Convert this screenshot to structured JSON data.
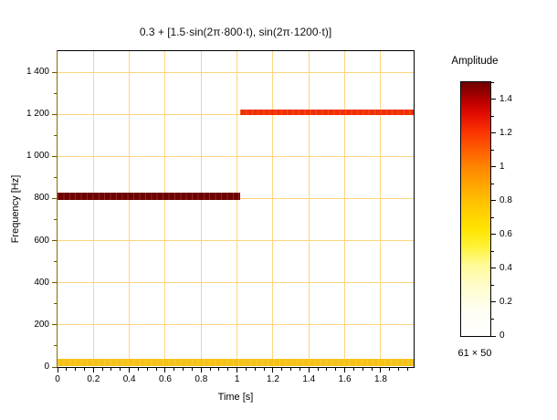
{
  "chart_data": {
    "type": "heatmap",
    "title": "0.3 + [1.5·sin(2π·800·t), sin(2π·1200·t)]",
    "xlabel": "Time [s]",
    "ylabel": "Frequency [Hz]",
    "grid": true,
    "grid_color": "#ffd480",
    "x_axis": {
      "min": 0,
      "max": 1.9833,
      "major_ticks": [
        {
          "value": 0,
          "label": "0"
        },
        {
          "value": 0.2,
          "label": "0.2"
        },
        {
          "value": 0.4,
          "label": "0.4"
        },
        {
          "value": 0.6,
          "label": "0.6"
        },
        {
          "value": 0.8,
          "label": "0.8"
        },
        {
          "value": 1,
          "label": "1"
        },
        {
          "value": 1.2,
          "label": "1.2"
        },
        {
          "value": 1.4,
          "label": "1.4"
        },
        {
          "value": 1.6,
          "label": "1.6"
        },
        {
          "value": 1.8,
          "label": "1.8"
        }
      ],
      "minor_step": 0.05
    },
    "y_axis": {
      "min": 0,
      "max": 1500,
      "major_ticks": [
        {
          "value": 0,
          "label": "0"
        },
        {
          "value": 200,
          "label": "200"
        },
        {
          "value": 400,
          "label": "400"
        },
        {
          "value": 600,
          "label": "600"
        },
        {
          "value": 800,
          "label": "800"
        },
        {
          "value": 1000,
          "label": "1 000"
        },
        {
          "value": 1200,
          "label": "1 200"
        },
        {
          "value": 1400,
          "label": "1 400"
        }
      ],
      "minor_step": 100
    },
    "bands": [
      {
        "name": "dc-offset-band",
        "t_start": 0,
        "t_end": 1.9833,
        "f_low": 5,
        "f_high": 38,
        "amplitude": 0.3,
        "color": "#f5c217"
      },
      {
        "name": "800hz-tone-band",
        "t_start": 0,
        "t_end": 1.017,
        "f_low": 795,
        "f_high": 830,
        "amplitude": 1.5,
        "color": "#6e0000"
      },
      {
        "name": "1200hz-tone-band",
        "t_start": 1.017,
        "t_end": 1.9833,
        "f_low": 1195,
        "f_high": 1223,
        "amplitude": 1.0,
        "color": "#f12f00"
      }
    ],
    "colorbar": {
      "label": "Amplitude",
      "min": 0,
      "max": 1.5,
      "major_ticks": [
        {
          "value": 0,
          "label": "0"
        },
        {
          "value": 0.2,
          "label": "0.2"
        },
        {
          "value": 0.4,
          "label": "0.4"
        },
        {
          "value": 0.6,
          "label": "0.6"
        },
        {
          "value": 0.8,
          "label": "0.8"
        },
        {
          "value": 1,
          "label": "1"
        },
        {
          "value": 1.2,
          "label": "1.2"
        },
        {
          "value": 1.4,
          "label": "1.4"
        }
      ],
      "minor_step": 0.1,
      "gradient": [
        {
          "pos": 0.0,
          "color": "#ffffff"
        },
        {
          "pos": 0.1,
          "color": "#fffef2"
        },
        {
          "pos": 0.2,
          "color": "#fffcca"
        },
        {
          "pos": 0.28,
          "color": "#fffa96"
        },
        {
          "pos": 0.35,
          "color": "#fff23a"
        },
        {
          "pos": 0.42,
          "color": "#ffe400"
        },
        {
          "pos": 0.5,
          "color": "#ffcc00"
        },
        {
          "pos": 0.58,
          "color": "#ffac00"
        },
        {
          "pos": 0.66,
          "color": "#ff8800"
        },
        {
          "pos": 0.74,
          "color": "#ff5a00"
        },
        {
          "pos": 0.81,
          "color": "#f93000"
        },
        {
          "pos": 0.87,
          "color": "#e50e00"
        },
        {
          "pos": 0.92,
          "color": "#c00000"
        },
        {
          "pos": 0.96,
          "color": "#950000"
        },
        {
          "pos": 1.0,
          "color": "#6e0000"
        }
      ]
    },
    "size_label": "61 × 50"
  }
}
